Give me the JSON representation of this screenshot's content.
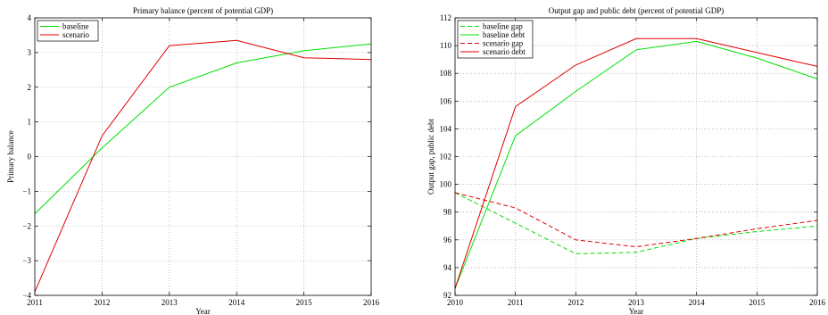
{
  "chart_data": [
    {
      "type": "line",
      "title": "Primary balance (percent of potential GDP)",
      "xlabel": "Year",
      "ylabel": "Primary balance",
      "xlim": [
        2011,
        2016
      ],
      "ylim": [
        -4,
        4
      ],
      "xticks": [
        "2011",
        "2012",
        "2013",
        "2014",
        "2015",
        "2016"
      ],
      "yticks": [
        "4",
        "3",
        "2",
        "1",
        "0",
        "−1",
        "−2",
        "−3",
        "−4"
      ],
      "grid": true,
      "legend_position": "top-left",
      "x": [
        2011,
        2012,
        2013,
        2014,
        2015,
        2016
      ],
      "series": [
        {
          "name": "baseline",
          "color": "#00e000",
          "dash": "solid",
          "values": [
            -1.65,
            0.25,
            2.0,
            2.7,
            3.05,
            3.25
          ]
        },
        {
          "name": "scenario",
          "color": "#e00000",
          "dash": "solid",
          "values": [
            -3.9,
            0.6,
            3.2,
            3.35,
            2.85,
            2.8
          ]
        }
      ]
    },
    {
      "type": "line",
      "title": "Output gap and public debt (percent of potential GDP)",
      "xlabel": "Year",
      "ylabel": "Output gap, public debt",
      "xlim": [
        2010,
        2016
      ],
      "ylim": [
        92,
        112
      ],
      "xticks": [
        "2010",
        "2011",
        "2012",
        "2013",
        "2014",
        "2015",
        "2016"
      ],
      "yticks": [
        "112",
        "110",
        "108",
        "106",
        "104",
        "102",
        "100",
        "98",
        "96",
        "94",
        "92"
      ],
      "grid": true,
      "legend_position": "top-left",
      "x": [
        2010,
        2011,
        2012,
        2013,
        2014,
        2015,
        2016
      ],
      "series": [
        {
          "name": "baseline gap",
          "color": "#00e000",
          "dash": "dashed",
          "values": [
            99.4,
            97.2,
            95.0,
            95.1,
            96.1,
            96.6,
            97.0
          ]
        },
        {
          "name": "baseline debt",
          "color": "#00e000",
          "dash": "solid",
          "values": [
            92.5,
            103.5,
            106.7,
            109.7,
            110.3,
            109.1,
            107.6
          ]
        },
        {
          "name": "scenario gap",
          "color": "#e00000",
          "dash": "dashed",
          "values": [
            99.4,
            98.3,
            96.0,
            95.5,
            96.1,
            96.8,
            97.4
          ]
        },
        {
          "name": "scenario debt",
          "color": "#e00000",
          "dash": "solid",
          "values": [
            92.5,
            105.6,
            108.6,
            110.5,
            110.5,
            109.5,
            108.5
          ]
        }
      ]
    }
  ]
}
